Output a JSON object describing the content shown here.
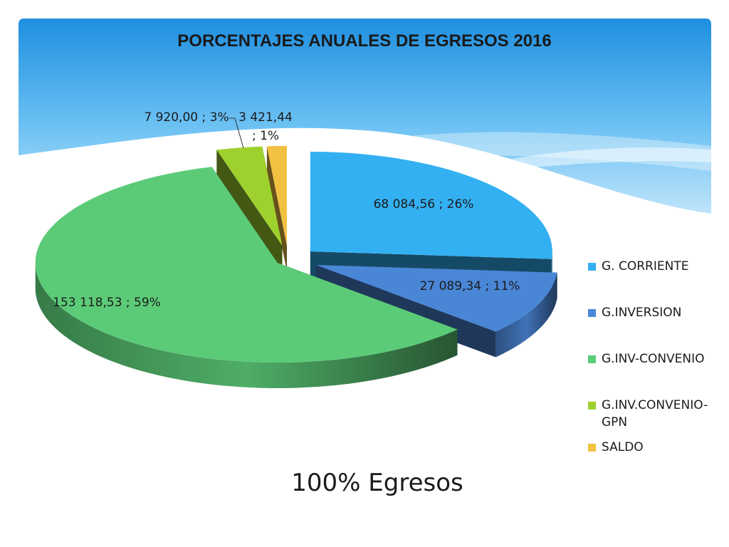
{
  "slide": {
    "caption": "100% Egresos"
  },
  "colors": {
    "banner_top": "#1e8fe0",
    "banner_bottom": "#bfe4fb"
  },
  "chart_data": {
    "type": "pie",
    "style": "3d-exploded",
    "title": "PORCENTAJES ANUALES DE EGRESOS 2016",
    "legend_position": "right",
    "slices": [
      {
        "category": "G. CORRIENTE",
        "value": 68084.56,
        "label": "68 084,56 ; 26%",
        "percent": 26,
        "color": "#33b0f2"
      },
      {
        "category": "G.INVERSION",
        "value": 27089.34,
        "label": "27 089,34 ; 11%",
        "percent": 11,
        "color": "#4a86d6"
      },
      {
        "category": "G.INV-CONVENIO",
        "value": 153118.53,
        "label": "153 118,53 ; 59%",
        "percent": 59,
        "color": "#5ccb78"
      },
      {
        "category": "G.INV.CONVENIO-GPN",
        "value": 7920.0,
        "label": "7 920,00 ; 3%",
        "percent": 3,
        "color": "#9ed12e"
      },
      {
        "category": "SALDO",
        "value": 3421.44,
        "label": "3 421,44 ; 1%",
        "percent": 1,
        "color": "#f2c141"
      }
    ]
  }
}
